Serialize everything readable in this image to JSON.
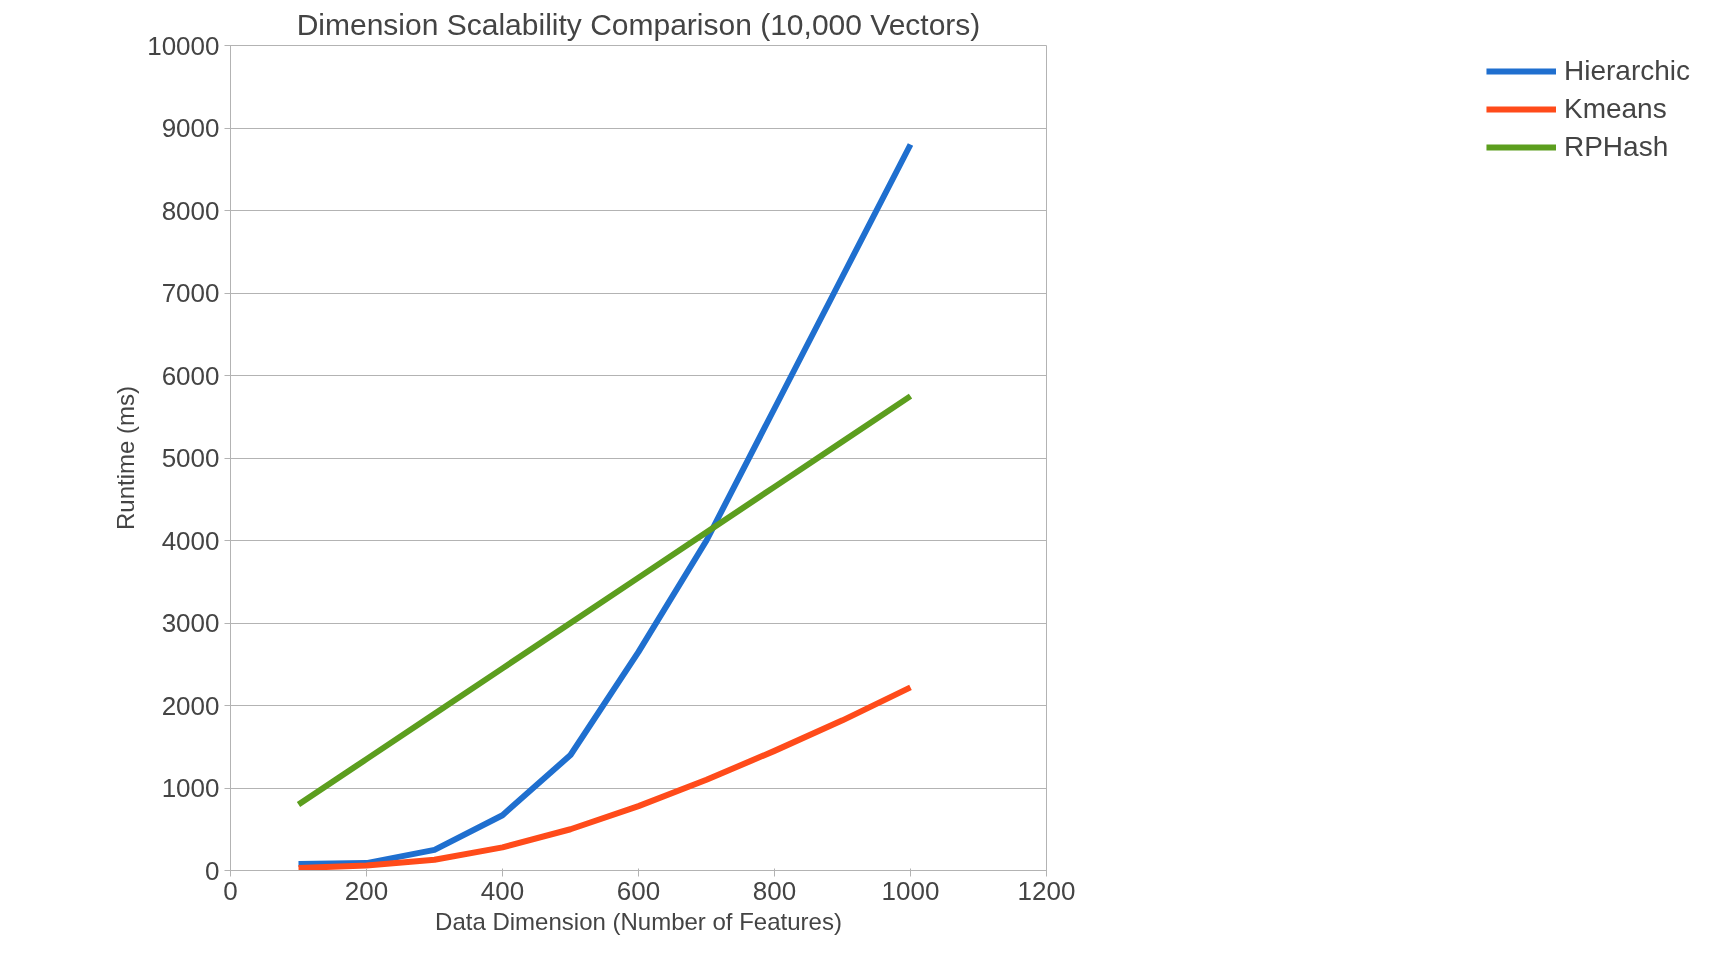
{
  "chart_data": {
    "type": "line",
    "title": "Dimension Scalability Comparison (10,000 Vectors)",
    "xlabel": "Data Dimension (Number of Features)",
    "ylabel": "Runtime (ms)",
    "x": [
      100,
      200,
      300,
      400,
      500,
      600,
      700,
      800,
      900,
      1000
    ],
    "series": [
      {
        "name": "Hierarchic",
        "color": "#1f6fcf",
        "values": [
          80,
          90,
          250,
          670,
          1400,
          2650,
          4000,
          5600,
          7200,
          8800
        ]
      },
      {
        "name": "Kmeans",
        "color": "#ff4b1a",
        "values": [
          30,
          60,
          130,
          280,
          500,
          780,
          1100,
          1450,
          1820,
          2220
        ]
      },
      {
        "name": "RPHash",
        "color": "#5c9e1e",
        "values": [
          800,
          1350,
          1900,
          2450,
          3000,
          3550,
          4100,
          4650,
          5200,
          5750
        ]
      }
    ],
    "xlim": [
      0,
      1200
    ],
    "xticks": [
      0,
      200,
      400,
      600,
      800,
      1000,
      1200
    ],
    "ylim": [
      0,
      10000
    ],
    "yticks": [
      0,
      1000,
      2000,
      3000,
      4000,
      5000,
      6000,
      7000,
      8000,
      9000,
      10000
    ],
    "grid": "y",
    "legend": "right",
    "marker": "none",
    "line_style": "solid"
  }
}
